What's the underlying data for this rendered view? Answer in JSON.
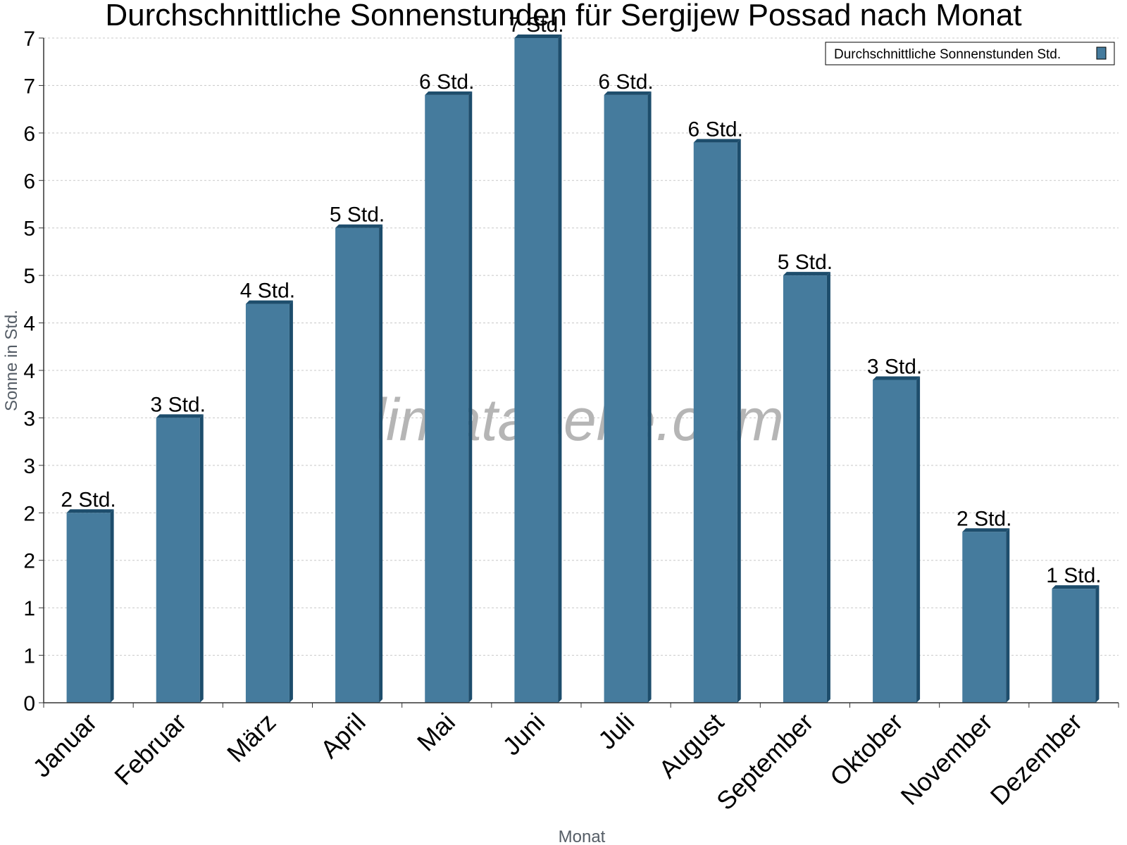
{
  "colors": {
    "bar": "#457b9d",
    "bar_side": "#1d4d6c",
    "bar_top": "#1d4d6c",
    "grid": "#c8c8c8",
    "axis": "#333333",
    "watermark": "#b5b5b5"
  },
  "watermark": "klimatabelle.com",
  "chart_data": {
    "type": "bar",
    "title": "Durchschnittliche Sonnenstunden für Sergijew Possad nach Monat",
    "xlabel": "Monat",
    "ylabel": "Sonne in Std.",
    "ylim": [
      0,
      7
    ],
    "yticks": [
      0,
      0.5,
      1,
      1.5,
      2,
      2.5,
      3,
      3.5,
      4,
      4.5,
      5,
      5.5,
      6,
      6.5,
      7
    ],
    "ytick_labels": [
      "0",
      "1",
      "1",
      "2",
      "2",
      "3",
      "3",
      "4",
      "4",
      "5",
      "5",
      "6",
      "6",
      "7",
      "7"
    ],
    "grid": true,
    "legend_position": "top-right",
    "categories": [
      "Januar",
      "Februar",
      "März",
      "April",
      "Mai",
      "Juni",
      "Juli",
      "August",
      "September",
      "Oktober",
      "November",
      "Dezember"
    ],
    "series": [
      {
        "name": "Durchschnittliche Sonnenstunden Std.",
        "values": [
          2.0,
          3.0,
          4.2,
          5.0,
          6.4,
          7.0,
          6.4,
          5.9,
          4.5,
          3.4,
          1.8,
          1.2
        ],
        "labels": [
          "2 Std.",
          "3 Std.",
          "4 Std.",
          "5 Std.",
          "6 Std.",
          "7 Std.",
          "6 Std.",
          "6 Std.",
          "5 Std.",
          "3 Std.",
          "2 Std.",
          "1 Std."
        ]
      }
    ]
  }
}
